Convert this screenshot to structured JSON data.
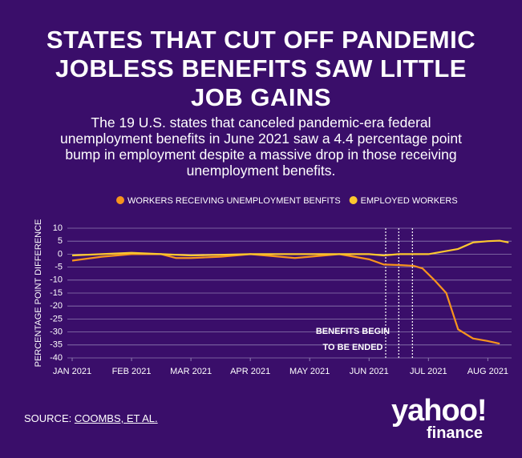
{
  "chart_data": {
    "type": "line",
    "title": "STATES THAT CUT OFF PANDEMIC JOBLESS BENEFITS SAW LITTLE JOB GAINS",
    "subtitle": "The 19 U.S. states that canceled pandemic-era federal unemployment benefits in June 2021 saw a 4.4 percentage point bump in employment despite a massive drop in those receiving unemployment benefits.",
    "y_label": "PERCENTAGE POINT DIFFERENCE",
    "xlim": [
      0,
      7.4
    ],
    "xticks": [
      {
        "value": 0,
        "label": "JAN 2021"
      },
      {
        "value": 1,
        "label": "FEB 2021"
      },
      {
        "value": 2,
        "label": "MAR 2021"
      },
      {
        "value": 3,
        "label": "APR 2021"
      },
      {
        "value": 4,
        "label": "MAY 2021"
      },
      {
        "value": 5,
        "label": "JUN 2021"
      },
      {
        "value": 6,
        "label": "JUL 2021"
      },
      {
        "value": 7,
        "label": "AUG 2021"
      }
    ],
    "ylim": [
      -40,
      10
    ],
    "yticks": [
      10,
      5,
      0,
      -5,
      -10,
      -15,
      -20,
      -25,
      -30,
      -35,
      -40
    ],
    "grid": true,
    "series": [
      {
        "name": "WORKERS RECEIVING UNEMPLOYMENT BENFITS",
        "color": "#f7941d",
        "x": [
          0,
          0.5,
          1,
          1.5,
          1.75,
          2,
          2.5,
          3,
          3.5,
          3.75,
          4.25,
          4.5,
          4.75,
          5,
          5.25,
          5.5,
          5.75,
          5.9,
          6.1,
          6.3,
          6.5,
          6.75,
          7.0,
          7.2
        ],
        "values": [
          -2.5,
          -1,
          0,
          0,
          -1.5,
          -1.5,
          -1,
          0,
          -1,
          -1.5,
          -0.5,
          0,
          -1,
          -2,
          -4,
          -4.2,
          -4.5,
          -5.5,
          -10,
          -15,
          -29,
          -32.5,
          -33.5,
          -34.5
        ]
      },
      {
        "name": "EMPLOYED WORKERS",
        "color": "#fdc82f",
        "x": [
          0,
          0.5,
          1,
          1.5,
          2,
          3,
          4,
          5,
          5.25,
          5.5,
          6,
          6.25,
          6.5,
          6.75,
          7,
          7.2,
          7.35
        ],
        "values": [
          -0.5,
          0,
          0.5,
          0,
          -0.5,
          0,
          0,
          0,
          -0.5,
          0,
          0,
          1,
          2,
          4.5,
          5,
          5.2,
          4.5
        ]
      }
    ],
    "annotation_lines": [
      5.28,
      5.5,
      5.73
    ],
    "annotation": [
      "BENEFITS BEGIN",
      "TO BE ENDED"
    ],
    "source_prefix": "SOURCE: ",
    "source_link": "COOMBS, ET AL.",
    "logo": "yahoo!",
    "logo_sub": "finance"
  }
}
